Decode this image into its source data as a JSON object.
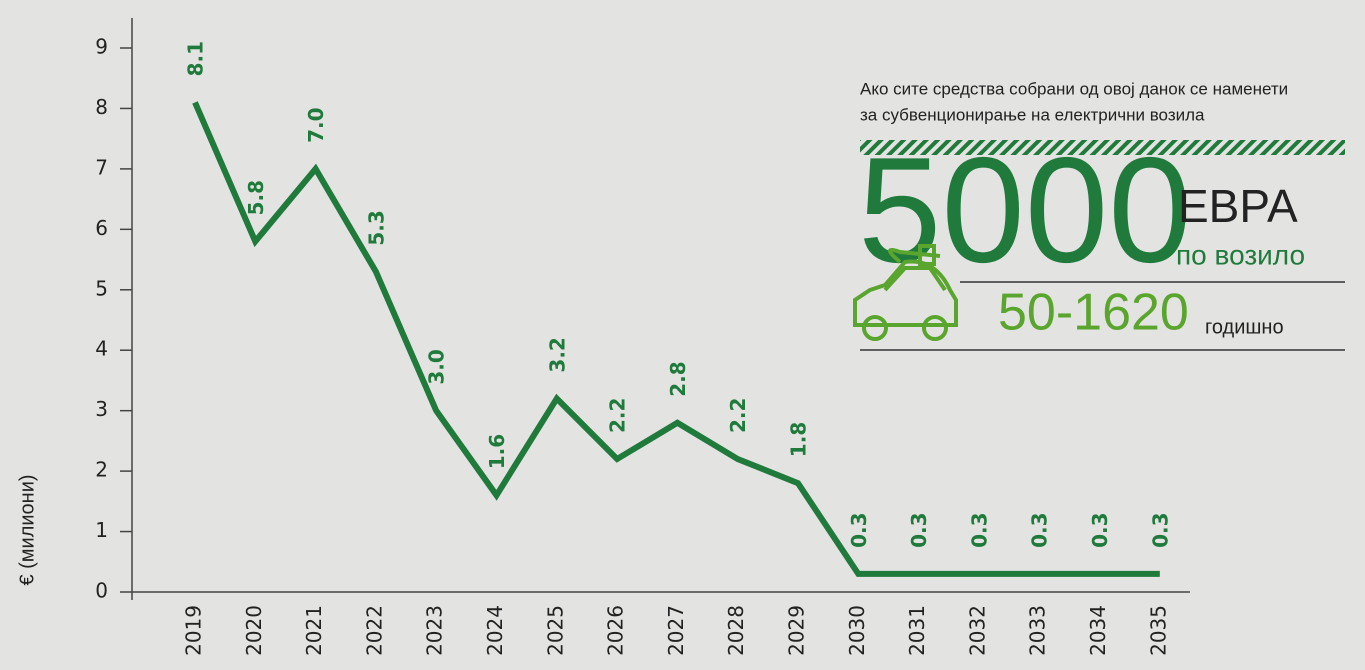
{
  "chart_data": {
    "type": "line",
    "y_label": "€ (милиони)",
    "categories": [
      "2019",
      "2020",
      "2021",
      "2022",
      "2023",
      "2024",
      "2025",
      "2026",
      "2027",
      "2028",
      "2029",
      "2030",
      "2031",
      "2032",
      "2033",
      "2034",
      "2035"
    ],
    "series": [
      {
        "name": null,
        "color": "#1f7a3c",
        "values": [
          8.1,
          5.8,
          7.0,
          5.3,
          3.0,
          1.6,
          3.2,
          2.2,
          2.8,
          2.2,
          1.8,
          0.3,
          0.3,
          0.3,
          0.3,
          0.3,
          0.3
        ],
        "value_labels": [
          "8.1",
          "5.8",
          "7.0",
          "5.3",
          "3.0",
          "1.6",
          "3.2",
          "2.2",
          "2.8",
          "2.2",
          "1.8",
          "0.3",
          "0.3",
          "0.3",
          "0.3",
          "0.3",
          "0.3"
        ]
      }
    ],
    "ylim": [
      0,
      9
    ],
    "yticks": [
      0,
      1,
      2,
      3,
      4,
      5,
      6,
      7,
      8,
      9
    ]
  },
  "panel": {
    "note_lines": [
      "Ако сите средства собрани од овој данок се наменети",
      "за субвенционирање на електрични возила"
    ],
    "amount": "5000",
    "currency": "ЕВРА",
    "per": "по возило",
    "range": "50-1620",
    "range_unit": "годишно"
  }
}
